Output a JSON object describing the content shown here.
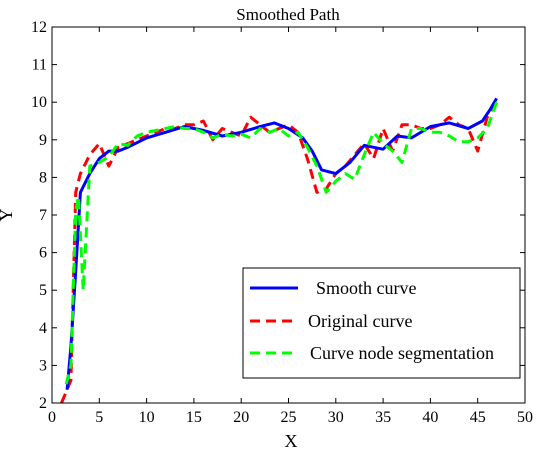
{
  "chart_data": {
    "type": "line",
    "title": "Smoothed Path",
    "xlabel": "X",
    "ylabel": "Y",
    "xlim": [
      0,
      50
    ],
    "ylim": [
      2,
      12
    ],
    "xticks": [
      0,
      5,
      10,
      15,
      20,
      25,
      30,
      35,
      40,
      45,
      50
    ],
    "yticks": [
      2,
      3,
      4,
      5,
      6,
      7,
      8,
      9,
      10,
      11,
      12
    ],
    "grid": false,
    "legend_position": "bottom-right",
    "series": [
      {
        "name": "Original curve",
        "color": "#ff0000",
        "style": "dashed",
        "x": [
          1,
          2,
          2.5,
          3,
          4,
          5,
          6,
          7,
          8,
          9,
          10,
          11,
          12,
          13,
          14,
          15,
          16,
          17,
          18,
          19,
          20,
          21,
          22,
          23,
          24,
          25,
          26,
          27,
          28,
          29,
          30,
          31,
          32,
          33,
          34,
          35,
          36,
          37,
          38,
          39,
          40,
          41,
          42,
          43,
          44,
          45,
          46,
          47
        ],
        "y": [
          2.0,
          2.6,
          7.6,
          8.1,
          8.6,
          8.9,
          8.3,
          8.8,
          8.9,
          9.0,
          9.1,
          9.2,
          9.3,
          9.3,
          9.4,
          9.4,
          9.5,
          9.0,
          9.3,
          9.2,
          9.1,
          9.6,
          9.4,
          9.2,
          9.3,
          9.4,
          9.2,
          8.5,
          7.6,
          7.7,
          8.1,
          8.3,
          8.6,
          8.9,
          8.5,
          9.3,
          8.7,
          9.4,
          9.4,
          9.3,
          9.3,
          9.4,
          9.6,
          9.4,
          9.3,
          8.7,
          9.6,
          10.0
        ]
      },
      {
        "name": "Smooth curve",
        "color": "#0000ff",
        "style": "solid",
        "x": [
          1.6,
          2.0,
          2.5,
          3.0,
          4.0,
          5.0,
          6.0,
          7.0,
          8.0,
          10.0,
          12.0,
          14.0,
          16.0,
          18.0,
          20.0,
          22.0,
          23.5,
          25.0,
          26.5,
          27.5,
          28.5,
          30.0,
          31.5,
          33.0,
          34.0,
          35.0,
          36.5,
          38.0,
          40.0,
          42.0,
          44.0,
          45.5,
          46.3,
          47.0
        ],
        "y": [
          2.35,
          3.5,
          5.5,
          7.6,
          8.1,
          8.5,
          8.7,
          8.7,
          8.8,
          9.05,
          9.2,
          9.35,
          9.25,
          9.1,
          9.2,
          9.35,
          9.45,
          9.3,
          9.05,
          8.7,
          8.2,
          8.1,
          8.4,
          8.85,
          8.8,
          8.75,
          9.1,
          9.05,
          9.35,
          9.45,
          9.3,
          9.5,
          9.8,
          10.1
        ]
      },
      {
        "name": "Curve node segmentation",
        "color": "#00ff00",
        "style": "dashed",
        "x": [
          1.5,
          2.0,
          2.5,
          2.8,
          3.3,
          4.0,
          5.0,
          6.0,
          7.0,
          8.0,
          9.0,
          10.0,
          11.0,
          12.0,
          13.0,
          14.0,
          15.0,
          16.0,
          17.0,
          18.0,
          19.0,
          20.0,
          21.0,
          22.0,
          23.0,
          24.0,
          25.0,
          26.0,
          27.0,
          28.0,
          29.0,
          30.0,
          31.0,
          32.0,
          33.0,
          34.0,
          35.0,
          36.0,
          37.0,
          38.0,
          39.0,
          40.0,
          41.0,
          42.0,
          43.0,
          44.0,
          45.0,
          46.0,
          47.0
        ],
        "y": [
          2.5,
          3.0,
          7.1,
          7.5,
          5.0,
          8.3,
          8.4,
          8.55,
          8.9,
          8.85,
          9.1,
          9.2,
          9.25,
          9.3,
          9.35,
          9.3,
          9.3,
          9.2,
          9.05,
          9.15,
          9.1,
          9.15,
          9.05,
          9.3,
          9.2,
          9.3,
          9.1,
          9.2,
          8.8,
          8.3,
          7.6,
          7.9,
          8.1,
          7.95,
          8.6,
          9.2,
          8.9,
          8.7,
          8.4,
          9.3,
          9.3,
          9.2,
          9.2,
          9.1,
          8.95,
          8.95,
          9.05,
          9.3,
          10.0
        ]
      }
    ],
    "legend_order": [
      "Smooth curve",
      "Original curve",
      "Curve node segmentation"
    ]
  }
}
